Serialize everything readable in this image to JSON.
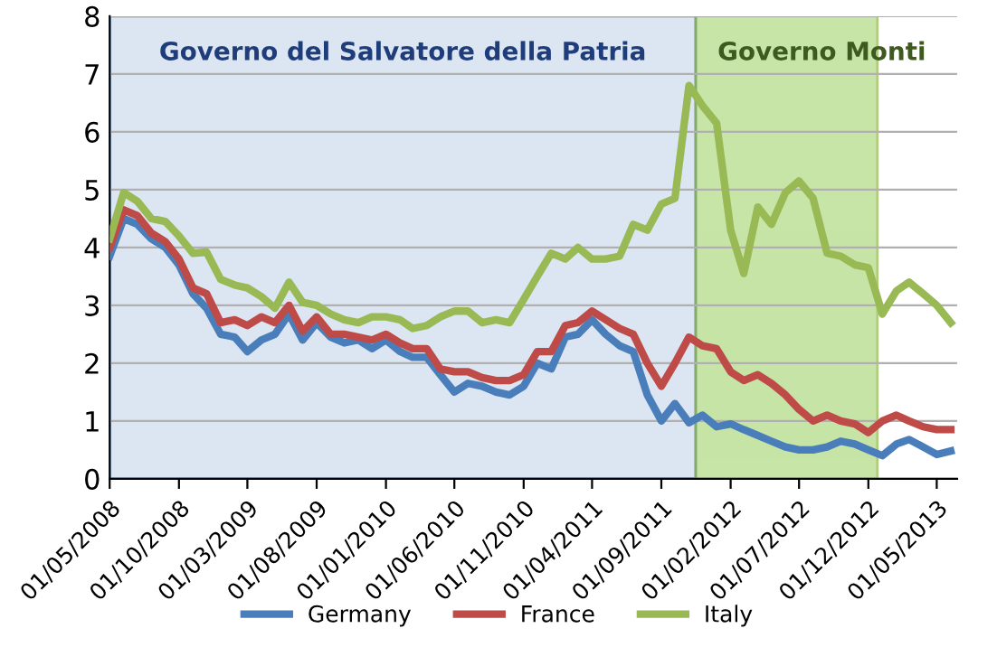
{
  "chart_data": {
    "type": "line",
    "x": [
      "2008-05",
      "2008-06",
      "2008-07",
      "2008-08",
      "2008-09",
      "2008-10",
      "2008-11",
      "2008-12",
      "2009-01",
      "2009-02",
      "2009-03",
      "2009-04",
      "2009-05",
      "2009-06",
      "2009-07",
      "2009-08",
      "2009-09",
      "2009-10",
      "2009-11",
      "2009-12",
      "2010-01",
      "2010-02",
      "2010-03",
      "2010-04",
      "2010-05",
      "2010-06",
      "2010-07",
      "2010-08",
      "2010-09",
      "2010-10",
      "2010-11",
      "2010-12",
      "2011-01",
      "2011-02",
      "2011-03",
      "2011-04",
      "2011-05",
      "2011-06",
      "2011-07",
      "2011-08",
      "2011-09",
      "2011-10",
      "2011-11",
      "2011-12",
      "2012-01",
      "2012-02",
      "2012-03",
      "2012-04",
      "2012-05",
      "2012-06",
      "2012-07",
      "2012-08",
      "2012-09",
      "2012-10",
      "2012-11",
      "2012-12",
      "2013-01",
      "2013-02",
      "2013-03",
      "2013-04",
      "2013-05",
      "2013-06"
    ],
    "series": [
      {
        "name": "Germany",
        "color": "#4a7ebb",
        "values": [
          3.85,
          4.5,
          4.4,
          4.15,
          4.0,
          3.7,
          3.2,
          2.95,
          2.5,
          2.45,
          2.2,
          2.4,
          2.5,
          2.85,
          2.4,
          2.7,
          2.45,
          2.35,
          2.4,
          2.25,
          2.4,
          2.2,
          2.1,
          2.1,
          1.8,
          1.5,
          1.65,
          1.6,
          1.5,
          1.45,
          1.6,
          2.0,
          1.9,
          2.45,
          2.5,
          2.75,
          2.5,
          2.3,
          2.2,
          1.45,
          1.0,
          1.3,
          0.97,
          1.1,
          0.9,
          0.95,
          0.85,
          0.75,
          0.65,
          0.55,
          0.5,
          0.5,
          0.55,
          0.65,
          0.6,
          0.5,
          0.4,
          0.6,
          0.68,
          0.55,
          0.42,
          0.48
        ]
      },
      {
        "name": "France",
        "color": "#be4b48",
        "values": [
          4.0,
          4.65,
          4.55,
          4.25,
          4.1,
          3.8,
          3.3,
          3.2,
          2.7,
          2.75,
          2.65,
          2.8,
          2.7,
          3.0,
          2.55,
          2.8,
          2.5,
          2.5,
          2.45,
          2.4,
          2.5,
          2.35,
          2.25,
          2.25,
          1.9,
          1.85,
          1.85,
          1.75,
          1.7,
          1.7,
          1.8,
          2.2,
          2.2,
          2.65,
          2.7,
          2.9,
          2.75,
          2.6,
          2.5,
          2.0,
          1.6,
          2.0,
          2.45,
          2.3,
          2.25,
          1.85,
          1.7,
          1.8,
          1.65,
          1.45,
          1.2,
          1.0,
          1.1,
          1.0,
          0.95,
          0.8,
          1.0,
          1.1,
          1.0,
          0.9,
          0.85,
          0.85
        ]
      },
      {
        "name": "Italy",
        "color": "#98b954",
        "values": [
          4.15,
          4.95,
          4.8,
          4.5,
          4.45,
          4.2,
          3.9,
          3.92,
          3.45,
          3.35,
          3.3,
          3.15,
          2.95,
          3.4,
          3.05,
          3.0,
          2.85,
          2.75,
          2.7,
          2.8,
          2.8,
          2.75,
          2.6,
          2.65,
          2.8,
          2.9,
          2.9,
          2.7,
          2.75,
          2.7,
          3.1,
          3.5,
          3.9,
          3.8,
          4.0,
          3.8,
          3.8,
          3.85,
          4.4,
          4.3,
          4.75,
          4.85,
          6.8,
          6.45,
          6.15,
          4.3,
          3.55,
          4.7,
          4.4,
          4.95,
          5.15,
          4.85,
          3.9,
          3.85,
          3.7,
          3.65,
          2.85,
          3.25,
          3.4,
          3.2,
          3.0,
          2.7
        ]
      }
    ],
    "xlim": [
      "2008-05-01",
      "2013-06-15"
    ],
    "xticks": [
      {
        "value": "2008-05-01",
        "label": "01/05/2008"
      },
      {
        "value": "2008-10-01",
        "label": "01/10/2008"
      },
      {
        "value": "2009-03-01",
        "label": "01/03/2009"
      },
      {
        "value": "2009-08-01",
        "label": "01/08/2009"
      },
      {
        "value": "2010-01-01",
        "label": "01/01/2010"
      },
      {
        "value": "2010-06-01",
        "label": "01/06/2010"
      },
      {
        "value": "2010-11-01",
        "label": "01/11/2010"
      },
      {
        "value": "2011-04-01",
        "label": "01/04/2011"
      },
      {
        "value": "2011-09-01",
        "label": "01/09/2011"
      },
      {
        "value": "2012-02-01",
        "label": "01/02/2012"
      },
      {
        "value": "2012-07-01",
        "label": "01/07/2012"
      },
      {
        "value": "2012-12-01",
        "label": "01/12/2012"
      },
      {
        "value": "2013-05-01",
        "label": "01/05/2013"
      }
    ],
    "ylim": [
      0,
      8
    ],
    "yticks": [
      0,
      1,
      2,
      3,
      4,
      5,
      6,
      7,
      8
    ],
    "bands": [
      {
        "axis": "x",
        "from": "2008-05-01",
        "to": "2011-11-16",
        "label": "Governo del Salvatore della Patria",
        "color": "#dce6f2"
      },
      {
        "axis": "x",
        "from": "2011-11-16",
        "to": "2012-12-21",
        "label": "Governo Monti",
        "color": "#b5dc8a"
      }
    ],
    "grid": "y",
    "legend": "bottom",
    "line_style": "solid",
    "marker": "none"
  }
}
